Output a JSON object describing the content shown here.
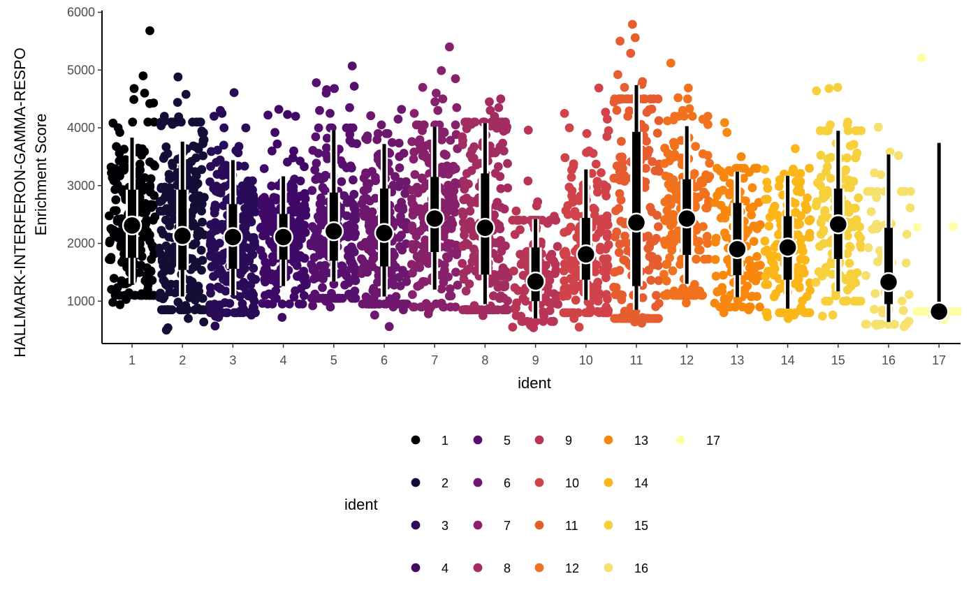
{
  "chart_data": {
    "type": "scatter",
    "subtype": "jittered strip plot with median and interval summaries",
    "title": "",
    "xlabel": "ident",
    "ylabel_lines": [
      "HALLMARK-INTERFERON-GAMMA-RESPO",
      "Enrichment Score"
    ],
    "ylim": [
      450,
      6050
    ],
    "yticks": [
      1000,
      2000,
      3000,
      4000,
      5000,
      6000
    ],
    "categories": [
      "1",
      "2",
      "3",
      "4",
      "5",
      "6",
      "7",
      "8",
      "9",
      "10",
      "11",
      "12",
      "13",
      "14",
      "15",
      "16",
      "17"
    ],
    "colors": [
      "#000004",
      "#140e36",
      "#2a0b57",
      "#410967",
      "#57106e",
      "#6d186e",
      "#87216b",
      "#a32c61",
      "#b93556",
      "#d1434b",
      "#e65d2f",
      "#f1711f",
      "#f8870e",
      "#fbb61a",
      "#f7d13d",
      "#f6e06e",
      "#fcffa4"
    ],
    "series": [
      {
        "name": "1",
        "points": 220,
        "median": 2310,
        "q1": 1750,
        "q3": 2930,
        "lo": 1300,
        "hi": 3830,
        "jitter_lo": 1100,
        "jitter_hi": 4100,
        "outliers": [
          5680,
          4900,
          4680,
          4600,
          4490,
          4430,
          4420,
          1030,
          940,
          980
        ]
      },
      {
        "name": "2",
        "points": 220,
        "median": 2130,
        "q1": 1540,
        "q3": 2930,
        "lo": 1080,
        "hi": 3760,
        "jitter_lo": 850,
        "jitter_hi": 4100,
        "outliers": [
          4880,
          4580,
          4440,
          4200,
          4190,
          4060,
          700,
          640,
          540,
          500
        ]
      },
      {
        "name": "3",
        "points": 220,
        "median": 2110,
        "q1": 1560,
        "q3": 2680,
        "lo": 1100,
        "hi": 3440,
        "jitter_lo": 800,
        "jitter_hi": 4000,
        "outliers": [
          4610,
          4300,
          4250,
          4200,
          760,
          740,
          720,
          570
        ]
      },
      {
        "name": "4",
        "points": 220,
        "median": 2110,
        "q1": 1720,
        "q3": 2510,
        "lo": 1260,
        "hi": 3160,
        "jitter_lo": 950,
        "jitter_hi": 3600,
        "outliers": [
          4320,
          4230,
          4220,
          4200,
          3920,
          3720,
          720
        ]
      },
      {
        "name": "5",
        "points": 200,
        "median": 2210,
        "q1": 1700,
        "q3": 2880,
        "lo": 1340,
        "hi": 3960,
        "jitter_lo": 1050,
        "jitter_hi": 4000,
        "outliers": [
          5070,
          4780,
          4720,
          4680,
          4660,
          4600,
          4350,
          4300,
          4250,
          1000,
          920,
          900
        ]
      },
      {
        "name": "6",
        "points": 200,
        "median": 2180,
        "q1": 1600,
        "q3": 2950,
        "lo": 1080,
        "hi": 3720,
        "jitter_lo": 950,
        "jitter_hi": 3900,
        "outliers": [
          4320,
          4210,
          4150,
          4050,
          900,
          850,
          760,
          560
        ]
      },
      {
        "name": "7",
        "points": 200,
        "median": 2430,
        "q1": 1850,
        "q3": 3150,
        "lo": 1200,
        "hi": 4020,
        "jitter_lo": 900,
        "jitter_hi": 4050,
        "outliers": [
          5400,
          4990,
          4850,
          4700,
          4600,
          4500,
          4450,
          4350,
          4300,
          4250,
          850,
          780
        ]
      },
      {
        "name": "8",
        "points": 200,
        "median": 2270,
        "q1": 1460,
        "q3": 3210,
        "lo": 950,
        "hi": 4080,
        "jitter_lo": 850,
        "jitter_hi": 4100,
        "outliers": [
          4500,
          4450,
          4350,
          4300,
          4200,
          850,
          750
        ]
      },
      {
        "name": "9",
        "points": 120,
        "median": 1340,
        "q1": 1000,
        "q3": 1930,
        "lo": 700,
        "hi": 2420,
        "jitter_lo": 650,
        "jitter_hi": 2400,
        "outliers": [
          3960,
          3080,
          2720,
          2650,
          2560,
          2470,
          580,
          550,
          540
        ]
      },
      {
        "name": "10",
        "points": 180,
        "median": 1810,
        "q1": 1370,
        "q3": 2440,
        "lo": 1020,
        "hi": 3280,
        "jitter_lo": 800,
        "jitter_hi": 3600,
        "outliers": [
          4690,
          4270,
          4250,
          4150,
          4000,
          3950,
          3900,
          3850,
          700,
          550
        ]
      },
      {
        "name": "11",
        "points": 180,
        "median": 2360,
        "q1": 1260,
        "q3": 3930,
        "lo": 850,
        "hi": 4740,
        "jitter_lo": 700,
        "jitter_hi": 4500,
        "outliers": [
          5790,
          5560,
          5500,
          5290,
          4920,
          4800,
          4750,
          4700,
          640,
          620
        ]
      },
      {
        "name": "12",
        "points": 180,
        "median": 2430,
        "q1": 1800,
        "q3": 3110,
        "lo": 1300,
        "hi": 4030,
        "jitter_lo": 1100,
        "jitter_hi": 4200,
        "outliers": [
          5120,
          4690,
          4520,
          4500,
          4330,
          4300,
          4200,
          970
        ]
      },
      {
        "name": "13",
        "points": 130,
        "median": 1900,
        "q1": 1450,
        "q3": 2700,
        "lo": 1070,
        "hi": 3240,
        "jitter_lo": 900,
        "jitter_hi": 3300,
        "outliers": [
          4090,
          3920,
          3500,
          3250,
          850,
          800
        ]
      },
      {
        "name": "14",
        "points": 130,
        "median": 1930,
        "q1": 1370,
        "q3": 2470,
        "lo": 870,
        "hi": 3170,
        "jitter_lo": 800,
        "jitter_hi": 3300,
        "outliers": [
          3640,
          3280,
          3200,
          760,
          730,
          700
        ]
      },
      {
        "name": "15",
        "points": 130,
        "median": 2330,
        "q1": 1730,
        "q3": 2950,
        "lo": 1170,
        "hi": 3950,
        "jitter_lo": 1000,
        "jitter_hi": 3950,
        "outliers": [
          4700,
          4680,
          4640,
          4100,
          4050,
          4050,
          760,
          740
        ]
      },
      {
        "name": "16",
        "points": 50,
        "median": 1330,
        "q1": 950,
        "q3": 2270,
        "lo": 640,
        "hi": 3540,
        "jitter_lo": 600,
        "jitter_hi": 2900,
        "outliers": [
          4010,
          3580,
          3520,
          3220,
          3190,
          580,
          560
        ]
      },
      {
        "name": "17",
        "points": 12,
        "median": 820,
        "q1": 820,
        "q3": 820,
        "lo": 820,
        "hi": 3740,
        "jitter_lo": 660,
        "jitter_hi": 920,
        "outliers": [
          5210,
          2290,
          2280,
          680
        ]
      }
    ],
    "legend": {
      "title": "ident",
      "placement": "bottom",
      "columns": 5,
      "entries": [
        "1",
        "2",
        "3",
        "4",
        "5",
        "6",
        "7",
        "8",
        "9",
        "10",
        "11",
        "12",
        "13",
        "14",
        "15",
        "16",
        "17"
      ]
    },
    "grid": false
  }
}
